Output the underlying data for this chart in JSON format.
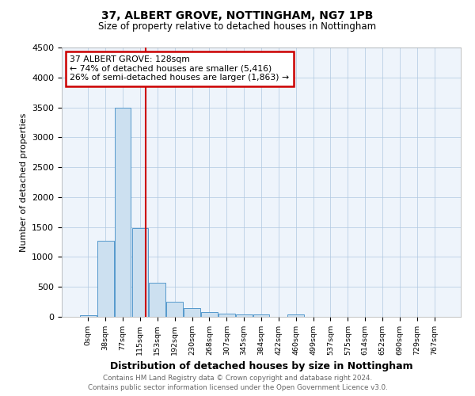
{
  "title": "37, ALBERT GROVE, NOTTINGHAM, NG7 1PB",
  "subtitle": "Size of property relative to detached houses in Nottingham",
  "xlabel": "Distribution of detached houses by size in Nottingham",
  "ylabel": "Number of detached properties",
  "bin_labels": [
    "0sqm",
    "38sqm",
    "77sqm",
    "115sqm",
    "153sqm",
    "192sqm",
    "230sqm",
    "268sqm",
    "307sqm",
    "345sqm",
    "384sqm",
    "422sqm",
    "460sqm",
    "499sqm",
    "537sqm",
    "575sqm",
    "614sqm",
    "652sqm",
    "690sqm",
    "729sqm",
    "767sqm"
  ],
  "bar_values": [
    30,
    1270,
    3500,
    1480,
    570,
    250,
    140,
    80,
    55,
    35,
    45,
    0,
    45,
    0,
    0,
    0,
    0,
    0,
    0,
    0,
    0
  ],
  "bar_color": "#cce0f0",
  "bar_edge_color": "#5599cc",
  "annotation_line1": "37 ALBERT GROVE: 128sqm",
  "annotation_line2": "← 74% of detached houses are smaller (5,416)",
  "annotation_line3": "26% of semi-detached houses are larger (1,863) →",
  "annotation_box_color": "#ffffff",
  "annotation_box_edge_color": "#cc0000",
  "red_line_color": "#cc0000",
  "ylim": [
    0,
    4500
  ],
  "yticks": [
    0,
    500,
    1000,
    1500,
    2000,
    2500,
    3000,
    3500,
    4000,
    4500
  ],
  "footer_line1": "Contains HM Land Registry data © Crown copyright and database right 2024.",
  "footer_line2": "Contains public sector information licensed under the Open Government Licence v3.0.",
  "background_color": "#eef4fb",
  "grid_color": "#b0c8e0"
}
